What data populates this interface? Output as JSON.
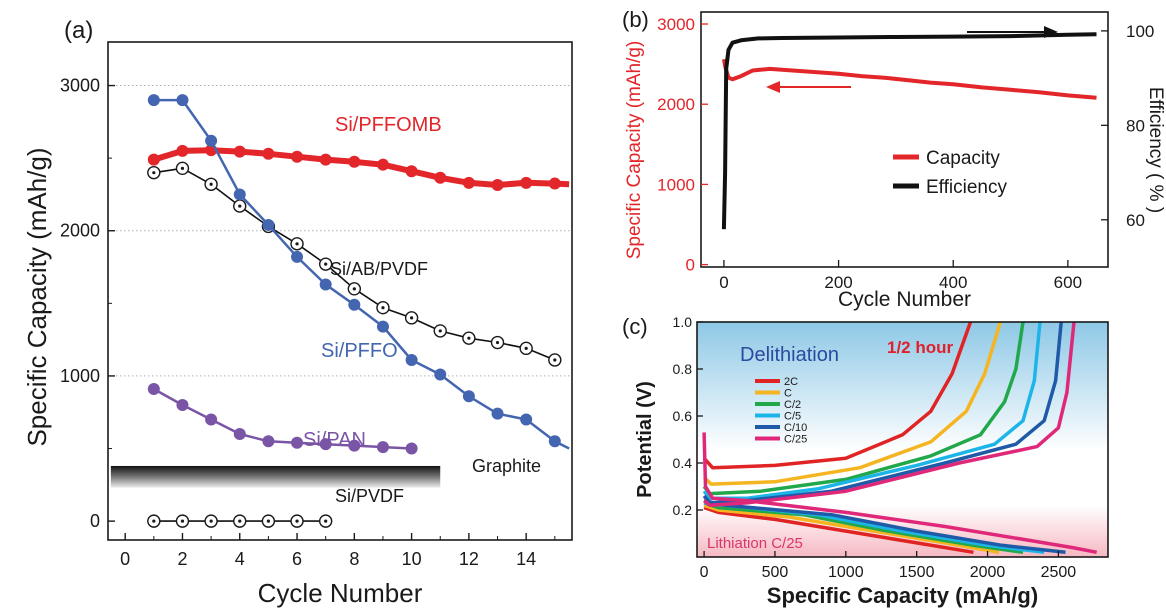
{
  "colors": {
    "red": "#e3262a",
    "black": "#111111",
    "blue": "#4466b0",
    "purple": "#7a55a5",
    "grey": "#9a9a9a",
    "delith_title": "#2a4aa0",
    "lith_text": "#d9366b",
    "half_hour": "#e0202a",
    "c_2C": "#e02424",
    "c_C": "#f5b520",
    "c_C2": "#20a84a",
    "c_C5": "#1db4e8",
    "c_C10": "#1f5aa8",
    "c_C25": "#e0287a"
  },
  "chart_data": [
    {
      "panel": "(a)",
      "type": "line",
      "xlabel": "Cycle Number",
      "ylabel": "Specific Capacity (mAh/g)",
      "xlim": [
        -0.6,
        15.6
      ],
      "ylim": [
        -130,
        3300
      ],
      "xticks": [
        "0",
        "2",
        "4",
        "6",
        "8",
        "10",
        "12",
        "14"
      ],
      "yticks": [
        "0",
        "1000",
        "2000",
        "3000"
      ],
      "grid": "dotted horizontal",
      "series": [
        {
          "name": "Si/PFFOMB",
          "color_key": "red",
          "marker": "filled",
          "x": [
            1,
            2,
            3,
            4,
            5,
            6,
            7,
            8,
            9,
            10,
            11,
            12,
            13,
            14,
            15,
            15.5
          ],
          "y": [
            2490,
            2550,
            2555,
            2545,
            2530,
            2510,
            2490,
            2475,
            2455,
            2410,
            2365,
            2330,
            2315,
            2330,
            2325,
            2320
          ]
        },
        {
          "name": "Si/AB/PVDF",
          "color_key": "black",
          "marker": "open",
          "x": [
            1,
            2,
            3,
            4,
            5,
            6,
            7,
            8,
            9,
            10,
            11,
            12,
            13,
            14,
            15
          ],
          "y": [
            2400,
            2430,
            2320,
            2170,
            2030,
            1910,
            1770,
            1600,
            1470,
            1400,
            1310,
            1260,
            1230,
            1190,
            1110
          ]
        },
        {
          "name": "Si/PFFO",
          "color_key": "blue",
          "marker": "filled",
          "x": [
            1,
            2,
            3,
            4,
            5,
            6,
            7,
            8,
            9,
            10,
            11,
            12,
            13,
            14,
            15,
            15.5
          ],
          "y": [
            2900,
            2900,
            2620,
            2250,
            2040,
            1820,
            1630,
            1490,
            1340,
            1110,
            1010,
            860,
            740,
            700,
            550,
            500
          ]
        },
        {
          "name": "Si/PAN",
          "color_key": "purple",
          "marker": "filled",
          "x": [
            1,
            2,
            3,
            4,
            5,
            6,
            7,
            8,
            9,
            10
          ],
          "y": [
            910,
            800,
            700,
            600,
            550,
            540,
            530,
            520,
            510,
            500
          ]
        },
        {
          "name": "Si/PVDF",
          "color_key": "black",
          "marker": "open",
          "x": [
            1,
            2,
            3,
            4,
            5,
            6,
            7
          ],
          "y": [
            0,
            0,
            0,
            0,
            0,
            0,
            0
          ]
        }
      ],
      "graphite_band": {
        "label": "Graphite",
        "x": [
          -0.5,
          11
        ],
        "y": [
          230,
          380
        ]
      }
    },
    {
      "panel": "(b)",
      "type": "line",
      "xlabel": "Cycle Number",
      "ylabel": "Specific Capacity (mAh/g)",
      "y2label": "Efficiency ( % )",
      "xlim": [
        -40,
        670
      ],
      "ylim": [
        -30,
        3050
      ],
      "y2lim": [
        50,
        104
      ],
      "xticks": [
        "0",
        "200",
        "400",
        "600"
      ],
      "yticks": [
        "0",
        "1000",
        "2000",
        "3000"
      ],
      "y2ticks": [
        "60",
        "80",
        "100"
      ],
      "legend": "center-right",
      "legend_entries": [
        "Capacity",
        "Efficiency"
      ],
      "series": [
        {
          "name": "Capacity",
          "color_key": "red",
          "axis": "left",
          "x": [
            0,
            3,
            8,
            15,
            30,
            50,
            80,
            120,
            160,
            200,
            240,
            280,
            320,
            360,
            400,
            450,
            500,
            550,
            600,
            650
          ],
          "y": [
            2560,
            2450,
            2330,
            2310,
            2350,
            2420,
            2440,
            2420,
            2400,
            2380,
            2350,
            2330,
            2300,
            2270,
            2250,
            2210,
            2180,
            2150,
            2110,
            2080
          ]
        },
        {
          "name": "Efficiency",
          "color_key": "black",
          "axis": "right",
          "x": [
            0,
            2,
            4,
            8,
            15,
            30,
            60,
            100,
            200,
            300,
            400,
            500,
            600,
            650
          ],
          "y": [
            58,
            70,
            92,
            96,
            97.5,
            98,
            98.4,
            98.5,
            98.6,
            98.7,
            98.8,
            98.9,
            99.2,
            99.3
          ]
        }
      ]
    },
    {
      "panel": "(c)",
      "type": "line",
      "xlabel": "Specific Capacity (mAh/g)",
      "ylabel": "Potential (V)",
      "xlim": [
        -50,
        2850
      ],
      "ylim": [
        0,
        1.0
      ],
      "xticks": [
        "0",
        "500",
        "1000",
        "1500",
        "2000",
        "2500"
      ],
      "yticks": [
        "0.2",
        "0.4",
        "0.6",
        "0.8",
        "1.0"
      ],
      "title_text": "Delithiation",
      "bottom_text": "Lithiation C/25",
      "corner_text": "1/2 hour",
      "legend": "upper-left",
      "series": [
        {
          "name": "2C",
          "color_key": "c_2C",
          "delith": [
            [
              0,
              0.42
            ],
            [
              60,
              0.38
            ],
            [
              500,
              0.39
            ],
            [
              1000,
              0.42
            ],
            [
              1400,
              0.52
            ],
            [
              1600,
              0.62
            ],
            [
              1750,
              0.78
            ],
            [
              1880,
              1.0
            ]
          ],
          "lith": [
            [
              0,
              0.21
            ],
            [
              100,
              0.19
            ],
            [
              500,
              0.16
            ],
            [
              1000,
              0.11
            ],
            [
              1500,
              0.06
            ],
            [
              1900,
              0.02
            ]
          ]
        },
        {
          "name": "C",
          "color_key": "c_C",
          "delith": [
            [
              0,
              0.34
            ],
            [
              50,
              0.31
            ],
            [
              500,
              0.32
            ],
            [
              1100,
              0.38
            ],
            [
              1600,
              0.49
            ],
            [
              1850,
              0.62
            ],
            [
              1980,
              0.78
            ],
            [
              2090,
              1.0
            ]
          ],
          "lith": [
            [
              0,
              0.22
            ],
            [
              100,
              0.2
            ],
            [
              600,
              0.17
            ],
            [
              1200,
              0.11
            ],
            [
              1700,
              0.06
            ],
            [
              2080,
              0.02
            ]
          ]
        },
        {
          "name": "C/2",
          "color_key": "c_C2",
          "delith": [
            [
              0,
              0.3
            ],
            [
              40,
              0.27
            ],
            [
              400,
              0.28
            ],
            [
              1000,
              0.33
            ],
            [
              1600,
              0.43
            ],
            [
              1950,
              0.52
            ],
            [
              2120,
              0.66
            ],
            [
              2200,
              0.8
            ],
            [
              2250,
              1.0
            ]
          ],
          "lith": [
            [
              0,
              0.23
            ],
            [
              100,
              0.21
            ],
            [
              700,
              0.18
            ],
            [
              1300,
              0.11
            ],
            [
              1900,
              0.05
            ],
            [
              2250,
              0.02
            ]
          ]
        },
        {
          "name": "C/5",
          "color_key": "c_C5",
          "delith": [
            [
              0,
              0.28
            ],
            [
              40,
              0.25
            ],
            [
              300,
              0.25
            ],
            [
              800,
              0.29
            ],
            [
              1500,
              0.39
            ],
            [
              2050,
              0.48
            ],
            [
              2250,
              0.58
            ],
            [
              2330,
              0.75
            ],
            [
              2370,
              1.0
            ]
          ],
          "lith": [
            [
              0,
              0.23
            ],
            [
              150,
              0.22
            ],
            [
              800,
              0.18
            ],
            [
              1400,
              0.11
            ],
            [
              2000,
              0.05
            ],
            [
              2400,
              0.02
            ]
          ]
        },
        {
          "name": "C/10",
          "color_key": "c_C10",
          "delith": [
            [
              0,
              0.26
            ],
            [
              40,
              0.23
            ],
            [
              300,
              0.24
            ],
            [
              900,
              0.28
            ],
            [
              1700,
              0.4
            ],
            [
              2200,
              0.48
            ],
            [
              2400,
              0.58
            ],
            [
              2480,
              0.75
            ],
            [
              2520,
              1.0
            ]
          ],
          "lith": [
            [
              0,
              0.24
            ],
            [
              150,
              0.22
            ],
            [
              900,
              0.18
            ],
            [
              1500,
              0.11
            ],
            [
              2100,
              0.05
            ],
            [
              2550,
              0.02
            ]
          ]
        },
        {
          "name": "C/25",
          "color_key": "c_C25",
          "delith": [
            [
              0,
              0.24
            ],
            [
              40,
              0.22
            ],
            [
              300,
              0.23
            ],
            [
              1000,
              0.28
            ],
            [
              1800,
              0.4
            ],
            [
              2350,
              0.47
            ],
            [
              2500,
              0.55
            ],
            [
              2560,
              0.7
            ],
            [
              2610,
              1.0
            ]
          ],
          "lith": [
            [
              0,
              0.53
            ],
            [
              10,
              0.3
            ],
            [
              60,
              0.25
            ],
            [
              300,
              0.24
            ],
            [
              1000,
              0.19
            ],
            [
              1700,
              0.13
            ],
            [
              2300,
              0.07
            ],
            [
              2600,
              0.04
            ],
            [
              2770,
              0.02
            ]
          ]
        }
      ]
    }
  ]
}
